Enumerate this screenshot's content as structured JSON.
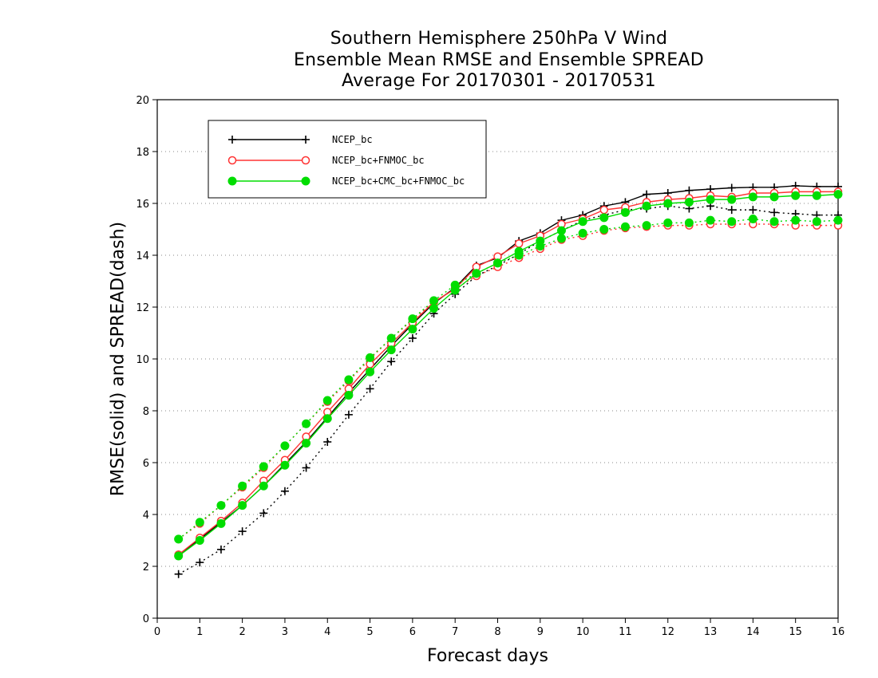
{
  "chart_data": {
    "type": "line",
    "title_lines": [
      "Southern Hemisphere 250hPa V Wind",
      "Ensemble Mean RMSE and Ensemble SPREAD",
      "Average For 20170301 - 20170531"
    ],
    "xlabel": "Forecast days",
    "ylabel": "RMSE(solid) and SPREAD(dash)",
    "xlim": [
      0,
      16
    ],
    "ylim": [
      0,
      20
    ],
    "xticks": [
      0,
      1,
      2,
      3,
      4,
      5,
      6,
      7,
      8,
      9,
      10,
      11,
      12,
      13,
      14,
      15,
      16
    ],
    "yticks": [
      0,
      2,
      4,
      6,
      8,
      10,
      12,
      14,
      16,
      18,
      20
    ],
    "grid": "horizontal dotted",
    "legend_position": "top-left",
    "x": [
      0.5,
      1,
      1.5,
      2,
      2.5,
      3,
      3.5,
      4,
      4.5,
      5,
      5.5,
      6,
      6.5,
      7,
      7.5,
      8,
      8.5,
      9,
      9.5,
      10,
      10.5,
      11,
      11.5,
      12,
      12.5,
      13,
      13.5,
      14,
      14.5,
      15,
      15.5,
      16
    ],
    "series": [
      {
        "name": "NCEP_bc",
        "color": "#000000",
        "marker": "plus",
        "rmse": [
          2.45,
          3.05,
          3.7,
          4.35,
          5.1,
          5.95,
          6.8,
          7.75,
          8.7,
          9.6,
          10.5,
          11.35,
          12.15,
          12.75,
          13.6,
          13.9,
          14.55,
          14.85,
          15.35,
          15.55,
          15.9,
          16.05,
          16.35,
          16.4,
          16.5,
          16.55,
          16.6,
          16.62,
          16.62,
          16.68,
          16.65,
          16.65
        ],
        "spread": [
          1.7,
          2.15,
          2.65,
          3.35,
          4.05,
          4.9,
          5.8,
          6.8,
          7.85,
          8.85,
          9.9,
          10.8,
          11.75,
          12.5,
          13.2,
          13.6,
          14.05,
          14.55,
          14.95,
          15.35,
          15.55,
          15.75,
          15.8,
          15.9,
          15.8,
          15.9,
          15.75,
          15.75,
          15.65,
          15.6,
          15.55,
          15.55
        ]
      },
      {
        "name": "NCEP_bc+FNMOC_bc",
        "color": "#ff3333",
        "marker": "open-circle",
        "rmse": [
          2.45,
          3.1,
          3.75,
          4.45,
          5.3,
          6.1,
          7.0,
          7.95,
          8.85,
          9.8,
          10.6,
          11.4,
          12.2,
          12.7,
          13.55,
          13.95,
          14.45,
          14.75,
          15.2,
          15.4,
          15.75,
          15.85,
          16.05,
          16.15,
          16.2,
          16.3,
          16.25,
          16.4,
          16.4,
          16.45,
          16.45,
          16.45
        ],
        "spread": [
          3.05,
          3.65,
          4.35,
          5.05,
          5.8,
          6.65,
          7.5,
          8.35,
          9.15,
          10.0,
          10.8,
          11.5,
          12.2,
          12.7,
          13.2,
          13.55,
          13.9,
          14.25,
          14.6,
          14.75,
          14.95,
          15.05,
          15.1,
          15.15,
          15.15,
          15.2,
          15.2,
          15.2,
          15.2,
          15.15,
          15.15,
          15.15
        ]
      },
      {
        "name": "NCEP_bc+CMC_bc+FNMOC_bc",
        "color": "#00dd00",
        "marker": "filled-circle",
        "rmse": [
          2.4,
          3.0,
          3.65,
          4.35,
          5.1,
          5.9,
          6.75,
          7.7,
          8.6,
          9.5,
          10.35,
          11.15,
          11.95,
          12.65,
          13.3,
          13.7,
          14.15,
          14.55,
          14.95,
          15.3,
          15.45,
          15.65,
          15.9,
          16.0,
          16.05,
          16.15,
          16.15,
          16.25,
          16.25,
          16.3,
          16.3,
          16.35
        ],
        "spread": [
          3.05,
          3.7,
          4.35,
          5.1,
          5.85,
          6.65,
          7.5,
          8.4,
          9.2,
          10.05,
          10.8,
          11.55,
          12.25,
          12.85,
          13.3,
          13.7,
          14.0,
          14.35,
          14.65,
          14.85,
          15.0,
          15.1,
          15.15,
          15.25,
          15.25,
          15.35,
          15.3,
          15.4,
          15.3,
          15.35,
          15.3,
          15.35
        ]
      }
    ]
  }
}
